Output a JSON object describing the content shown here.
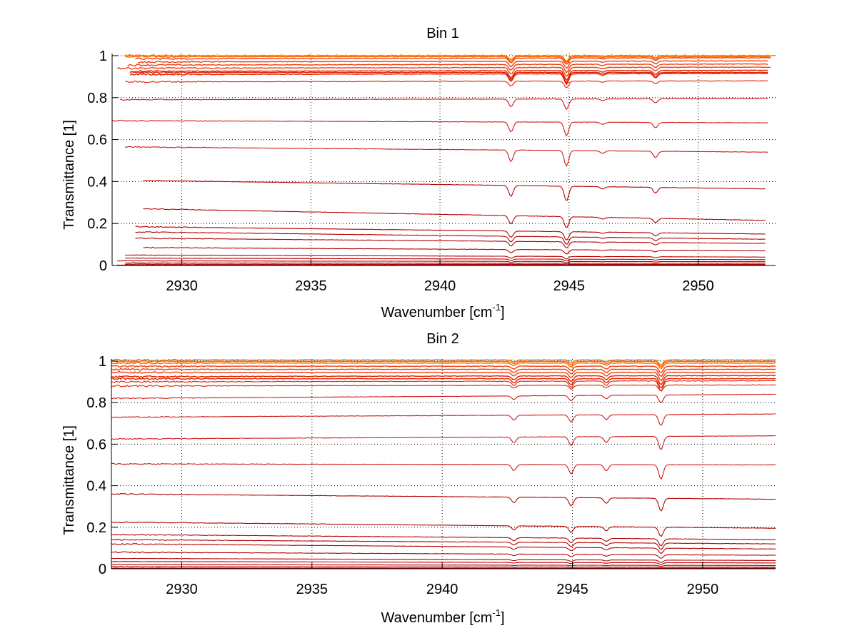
{
  "figure": {
    "colors": {
      "background": "#ffffff",
      "axis": "#000000",
      "grid": "#000000",
      "low_trace": "#b30000",
      "mid_trace": "#e02000",
      "high_trace": "#ff6a00",
      "top_trace": "#ffb000",
      "cool_trace": "#20b0c0"
    }
  },
  "chart_data": [
    {
      "type": "line",
      "title": "Bin 1",
      "xlabel": "Wavenumber [cm",
      "xlabel_sup": "-1",
      "xlabel_close": "]",
      "ylabel": "Transmittance [1]",
      "xlim": [
        2927.3,
        2953.0
      ],
      "ylim": [
        0,
        1.01
      ],
      "xticks": [
        2930,
        2935,
        2940,
        2945,
        2950
      ],
      "xtick_labels": [
        "2930",
        "2935",
        "2940",
        "2945",
        "2950"
      ],
      "yticks": [
        0,
        0.2,
        0.4,
        0.6,
        0.8,
        1
      ],
      "ytick_labels": [
        "0",
        "0.2",
        "0.4",
        "0.6",
        "0.8",
        "1"
      ],
      "grid": true,
      "absorption_lines": [
        {
          "x": 2942.75,
          "strength": 0.055
        },
        {
          "x": 2944.9,
          "strength": 0.075
        },
        {
          "x": 2946.3,
          "strength": 0.012
        },
        {
          "x": 2948.35,
          "strength": 0.03
        }
      ],
      "series_baselines": [
        {
          "start": 2927.8,
          "end": 2953.0,
          "t0": 1.0,
          "t1": 1.0
        },
        {
          "start": 2927.8,
          "end": 2952.8,
          "t0": 0.995,
          "t1": 0.995
        },
        {
          "start": 2928.2,
          "end": 2952.8,
          "t0": 0.985,
          "t1": 0.99
        },
        {
          "start": 2928.3,
          "end": 2952.7,
          "t0": 0.97,
          "t1": 0.975
        },
        {
          "start": 2927.9,
          "end": 2952.7,
          "t0": 0.955,
          "t1": 0.96
        },
        {
          "start": 2927.5,
          "end": 2952.8,
          "t0": 0.94,
          "t1": 0.945
        },
        {
          "start": 2928.0,
          "end": 2952.7,
          "t0": 0.925,
          "t1": 0.93
        },
        {
          "start": 2928.0,
          "end": 2952.7,
          "t0": 0.92,
          "t1": 0.92
        },
        {
          "start": 2928.0,
          "end": 2952.7,
          "t0": 0.91,
          "t1": 0.915
        },
        {
          "start": 2927.8,
          "end": 2952.7,
          "t0": 0.875,
          "t1": 0.88
        },
        {
          "start": 2927.6,
          "end": 2952.7,
          "t0": 0.79,
          "t1": 0.795
        },
        {
          "start": 2927.3,
          "end": 2952.7,
          "t0": 0.69,
          "t1": 0.68
        },
        {
          "start": 2927.8,
          "end": 2952.7,
          "t0": 0.565,
          "t1": 0.54
        },
        {
          "start": 2928.5,
          "end": 2952.6,
          "t0": 0.405,
          "t1": 0.365
        },
        {
          "start": 2928.5,
          "end": 2952.6,
          "t0": 0.27,
          "t1": 0.215
        },
        {
          "start": 2928.2,
          "end": 2952.6,
          "t0": 0.185,
          "t1": 0.15
        },
        {
          "start": 2928.2,
          "end": 2952.6,
          "t0": 0.16,
          "t1": 0.125
        },
        {
          "start": 2928.2,
          "end": 2952.6,
          "t0": 0.13,
          "t1": 0.105
        },
        {
          "start": 2928.5,
          "end": 2952.6,
          "t0": 0.085,
          "t1": 0.07
        },
        {
          "start": 2927.8,
          "end": 2952.6,
          "t0": 0.05,
          "t1": 0.04
        },
        {
          "start": 2927.8,
          "end": 2952.6,
          "t0": 0.035,
          "t1": 0.028
        },
        {
          "start": 2927.5,
          "end": 2952.6,
          "t0": 0.022,
          "t1": 0.018
        },
        {
          "start": 2927.8,
          "end": 2952.6,
          "t0": 0.012,
          "t1": 0.01
        },
        {
          "start": 2927.8,
          "end": 2952.6,
          "t0": 0.006,
          "t1": 0.005
        },
        {
          "start": 2927.5,
          "end": 2952.6,
          "t0": 0.002,
          "t1": 0.002
        }
      ]
    },
    {
      "type": "line",
      "title": "Bin 2",
      "xlabel": "Wavenumber [cm",
      "xlabel_sup": "-1",
      "xlabel_close": "]",
      "ylabel": "Transmittance [1]",
      "xlim": [
        2927.3,
        2952.8
      ],
      "ylim": [
        0,
        1.01
      ],
      "xticks": [
        2930,
        2935,
        2940,
        2945,
        2950
      ],
      "xtick_labels": [
        "2930",
        "2935",
        "2940",
        "2945",
        "2950"
      ],
      "yticks": [
        0,
        0.2,
        0.4,
        0.6,
        0.8,
        1
      ],
      "ytick_labels": [
        "0",
        "0.2",
        "0.4",
        "0.6",
        "0.8",
        "1"
      ],
      "grid": true,
      "absorption_lines": [
        {
          "x": 2942.75,
          "strength": 0.03
        },
        {
          "x": 2944.95,
          "strength": 0.045
        },
        {
          "x": 2946.3,
          "strength": 0.03
        },
        {
          "x": 2948.4,
          "strength": 0.07
        }
      ],
      "series_baselines": [
        {
          "start": 2927.3,
          "end": 2952.8,
          "t0": 1.005,
          "t1": 1.005
        },
        {
          "start": 2927.3,
          "end": 2952.8,
          "t0": 0.998,
          "t1": 0.998
        },
        {
          "start": 2927.3,
          "end": 2952.8,
          "t0": 0.99,
          "t1": 0.99
        },
        {
          "start": 2927.3,
          "end": 2952.8,
          "t0": 0.975,
          "t1": 0.975
        },
        {
          "start": 2927.3,
          "end": 2952.8,
          "t0": 0.96,
          "t1": 0.96
        },
        {
          "start": 2927.3,
          "end": 2952.8,
          "t0": 0.945,
          "t1": 0.945
        },
        {
          "start": 2927.3,
          "end": 2952.8,
          "t0": 0.925,
          "t1": 0.93
        },
        {
          "start": 2927.3,
          "end": 2952.8,
          "t0": 0.915,
          "t1": 0.915
        },
        {
          "start": 2927.3,
          "end": 2952.8,
          "t0": 0.9,
          "t1": 0.905
        },
        {
          "start": 2927.3,
          "end": 2952.8,
          "t0": 0.88,
          "t1": 0.885
        },
        {
          "start": 2927.3,
          "end": 2952.8,
          "t0": 0.82,
          "t1": 0.84
        },
        {
          "start": 2927.3,
          "end": 2952.8,
          "t0": 0.73,
          "t1": 0.745
        },
        {
          "start": 2927.3,
          "end": 2952.8,
          "t0": 0.625,
          "t1": 0.64
        },
        {
          "start": 2927.3,
          "end": 2952.8,
          "t0": 0.505,
          "t1": 0.5
        },
        {
          "start": 2927.3,
          "end": 2952.8,
          "t0": 0.36,
          "t1": 0.335
        },
        {
          "start": 2927.3,
          "end": 2952.8,
          "t0": 0.225,
          "t1": 0.195
        },
        {
          "start": 2927.3,
          "end": 2952.8,
          "t0": 0.165,
          "t1": 0.14
        },
        {
          "start": 2927.3,
          "end": 2952.8,
          "t0": 0.14,
          "t1": 0.12
        },
        {
          "start": 2927.3,
          "end": 2952.8,
          "t0": 0.12,
          "t1": 0.095
        },
        {
          "start": 2927.3,
          "end": 2952.8,
          "t0": 0.08,
          "t1": 0.065
        },
        {
          "start": 2927.3,
          "end": 2952.8,
          "t0": 0.05,
          "t1": 0.04
        },
        {
          "start": 2927.3,
          "end": 2952.8,
          "t0": 0.035,
          "t1": 0.028
        },
        {
          "start": 2927.3,
          "end": 2952.8,
          "t0": 0.02,
          "t1": 0.016
        },
        {
          "start": 2927.3,
          "end": 2952.8,
          "t0": 0.01,
          "t1": 0.008
        },
        {
          "start": 2927.3,
          "end": 2952.8,
          "t0": 0.003,
          "t1": 0.003
        }
      ]
    }
  ]
}
